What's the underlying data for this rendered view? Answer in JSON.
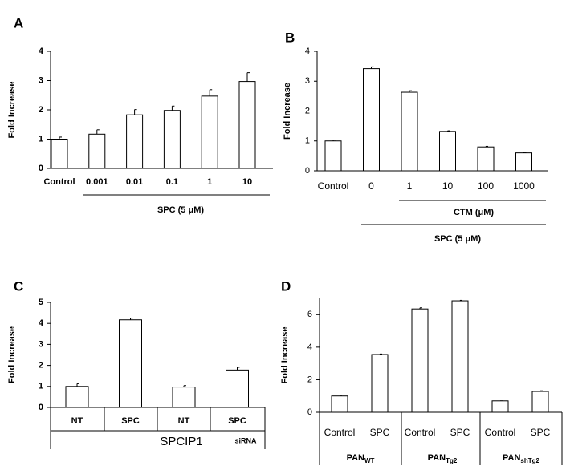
{
  "chart_data": [
    {
      "type": "bar",
      "panel": "A",
      "ylabel": "Fold Increase",
      "categories": [
        "Control",
        "0.001",
        "0.01",
        "0.1",
        "1",
        "10"
      ],
      "values": [
        1.0,
        1.17,
        1.83,
        1.98,
        2.47,
        2.97
      ],
      "errors": [
        0.07,
        0.15,
        0.18,
        0.15,
        0.22,
        0.3
      ],
      "ylim": [
        0,
        4
      ],
      "yticks": [
        0,
        1,
        2,
        3,
        4
      ],
      "color": "#ffffff",
      "group_labels": [
        "SPC (5 μM)"
      ]
    },
    {
      "type": "bar",
      "panel": "B",
      "ylabel": "Fold Increase",
      "categories": [
        "Control",
        "0",
        "1",
        "10",
        "100",
        "1000"
      ],
      "values": [
        1.0,
        3.42,
        2.63,
        1.32,
        0.8,
        0.6
      ],
      "errors": [
        0.03,
        0.06,
        0.05,
        0.02,
        0.02,
        0.02
      ],
      "ylim": [
        0,
        4
      ],
      "yticks": [
        0,
        1,
        2,
        3,
        4
      ],
      "color": "#ffffff",
      "group_labels": [
        "CTM (μM)",
        "SPC (5 μM)"
      ]
    },
    {
      "type": "bar",
      "panel": "C",
      "ylabel": "Fold Increase",
      "categories": [
        "NT",
        "SPC",
        "NT",
        "SPC"
      ],
      "values": [
        1.0,
        4.17,
        0.97,
        1.78
      ],
      "errors": [
        0.13,
        0.08,
        0.07,
        0.13
      ],
      "ylim": [
        0,
        5
      ],
      "yticks": [
        0,
        1,
        2,
        3,
        4,
        5
      ],
      "color": "#ffffff",
      "group_labels": [
        "SPCIP1",
        "siRNA"
      ]
    },
    {
      "type": "bar",
      "panel": "D",
      "ylabel": "Fold Increase",
      "categories": [
        "Control",
        "SPC",
        "Control",
        "SPC",
        "Control",
        "SPC"
      ],
      "values": [
        1.0,
        3.55,
        6.35,
        6.85,
        0.7,
        1.28
      ],
      "errors": [
        0,
        0.03,
        0.07,
        0.03,
        0,
        0.04
      ],
      "ylim": [
        0,
        7
      ],
      "yticks": [
        0,
        2,
        4,
        6
      ],
      "color": "#ffffff",
      "group_labels": [
        {
          "text": "PAN",
          "sub": "WT"
        },
        {
          "text": "PAN",
          "sub": "Tg2"
        },
        {
          "text": "PAN",
          "sub": "shTg2"
        }
      ]
    }
  ]
}
